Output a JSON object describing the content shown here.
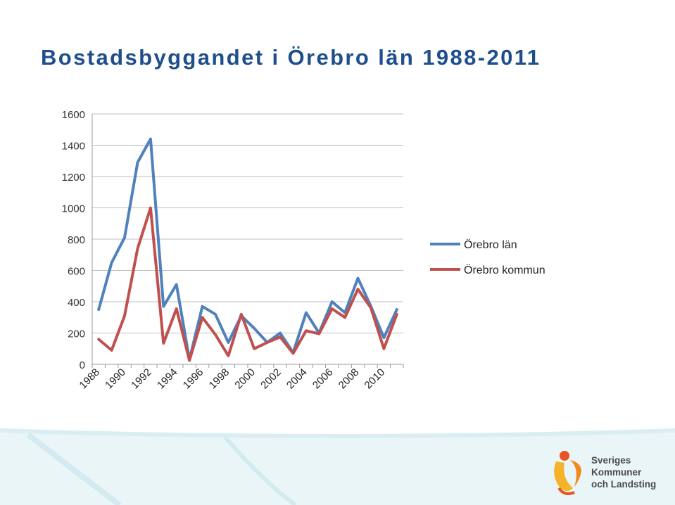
{
  "slide": {
    "title": "Bostadsbyggandet i Örebro län 1988-2011",
    "accent_color": "#1F4E8C",
    "background_wave_color": "#d9eef3"
  },
  "logo": {
    "line1": "Sveriges",
    "line2": "Kommuner",
    "line3": "och Landsting",
    "icon": "skl-figure-logo",
    "colors": [
      "#F5B32A",
      "#E8541F",
      "#F08A1C"
    ]
  },
  "chart_data": {
    "type": "line",
    "title": "",
    "xlabel": "",
    "ylabel": "",
    "x": [
      1988,
      1989,
      1990,
      1991,
      1992,
      1993,
      1994,
      1995,
      1996,
      1997,
      1998,
      1999,
      2000,
      2001,
      2002,
      2003,
      2004,
      2005,
      2006,
      2007,
      2008,
      2009,
      2010,
      2011
    ],
    "x_tick_labels": [
      "1988",
      "1990",
      "1992",
      "1994",
      "1996",
      "1998",
      "2000",
      "2002",
      "2004",
      "2006",
      "2008",
      "2010"
    ],
    "y_ticks": [
      0,
      200,
      400,
      600,
      800,
      1000,
      1200,
      1400,
      1600
    ],
    "ylim": [
      0,
      1600
    ],
    "grid": true,
    "legend": "right",
    "series": [
      {
        "name": "Örebro län",
        "color": "#4F81BD",
        "values": [
          350,
          650,
          810,
          1290,
          1440,
          370,
          510,
          30,
          370,
          320,
          140,
          310,
          230,
          140,
          200,
          75,
          330,
          200,
          400,
          330,
          550,
          370,
          170,
          350
        ]
      },
      {
        "name": "Örebro kommun",
        "color": "#C0504D",
        "values": [
          160,
          90,
          310,
          740,
          1000,
          135,
          355,
          25,
          300,
          190,
          55,
          320,
          100,
          140,
          175,
          70,
          215,
          195,
          355,
          300,
          480,
          360,
          100,
          320
        ]
      }
    ]
  }
}
